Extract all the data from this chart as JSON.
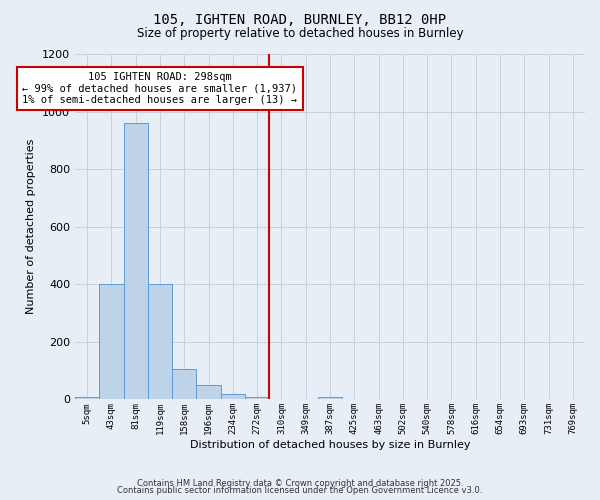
{
  "title": "105, IGHTEN ROAD, BURNLEY, BB12 0HP",
  "subtitle": "Size of property relative to detached houses in Burnley",
  "xlabel": "Distribution of detached houses by size in Burnley",
  "ylabel": "Number of detached properties",
  "bar_color": "#bfd3e8",
  "bar_edge_color": "#5b9bd5",
  "background_color": "#e8eef5",
  "grid_color": "#c8d0dc",
  "bin_labels": [
    "5sqm",
    "43sqm",
    "81sqm",
    "119sqm",
    "158sqm",
    "196sqm",
    "234sqm",
    "272sqm",
    "310sqm",
    "349sqm",
    "387sqm",
    "425sqm",
    "463sqm",
    "502sqm",
    "540sqm",
    "578sqm",
    "616sqm",
    "654sqm",
    "693sqm",
    "731sqm",
    "769sqm"
  ],
  "bar_heights": [
    10,
    400,
    960,
    400,
    105,
    50,
    20,
    10,
    0,
    0,
    10,
    0,
    0,
    0,
    0,
    0,
    0,
    0,
    0,
    0,
    0
  ],
  "red_line_index": 8,
  "ylim": [
    0,
    1200
  ],
  "yticks": [
    0,
    200,
    400,
    600,
    800,
    1000,
    1200
  ],
  "annotation_text": "105 IGHTEN ROAD: 298sqm\n← 99% of detached houses are smaller (1,937)\n1% of semi-detached houses are larger (13) →",
  "annotation_box_color": "#ffffff",
  "annotation_box_edge_color": "#cc0000",
  "footer_line1": "Contains HM Land Registry data © Crown copyright and database right 2025.",
  "footer_line2": "Contains public sector information licensed under the Open Government Licence v3.0.",
  "red_line_color": "#cc0000"
}
